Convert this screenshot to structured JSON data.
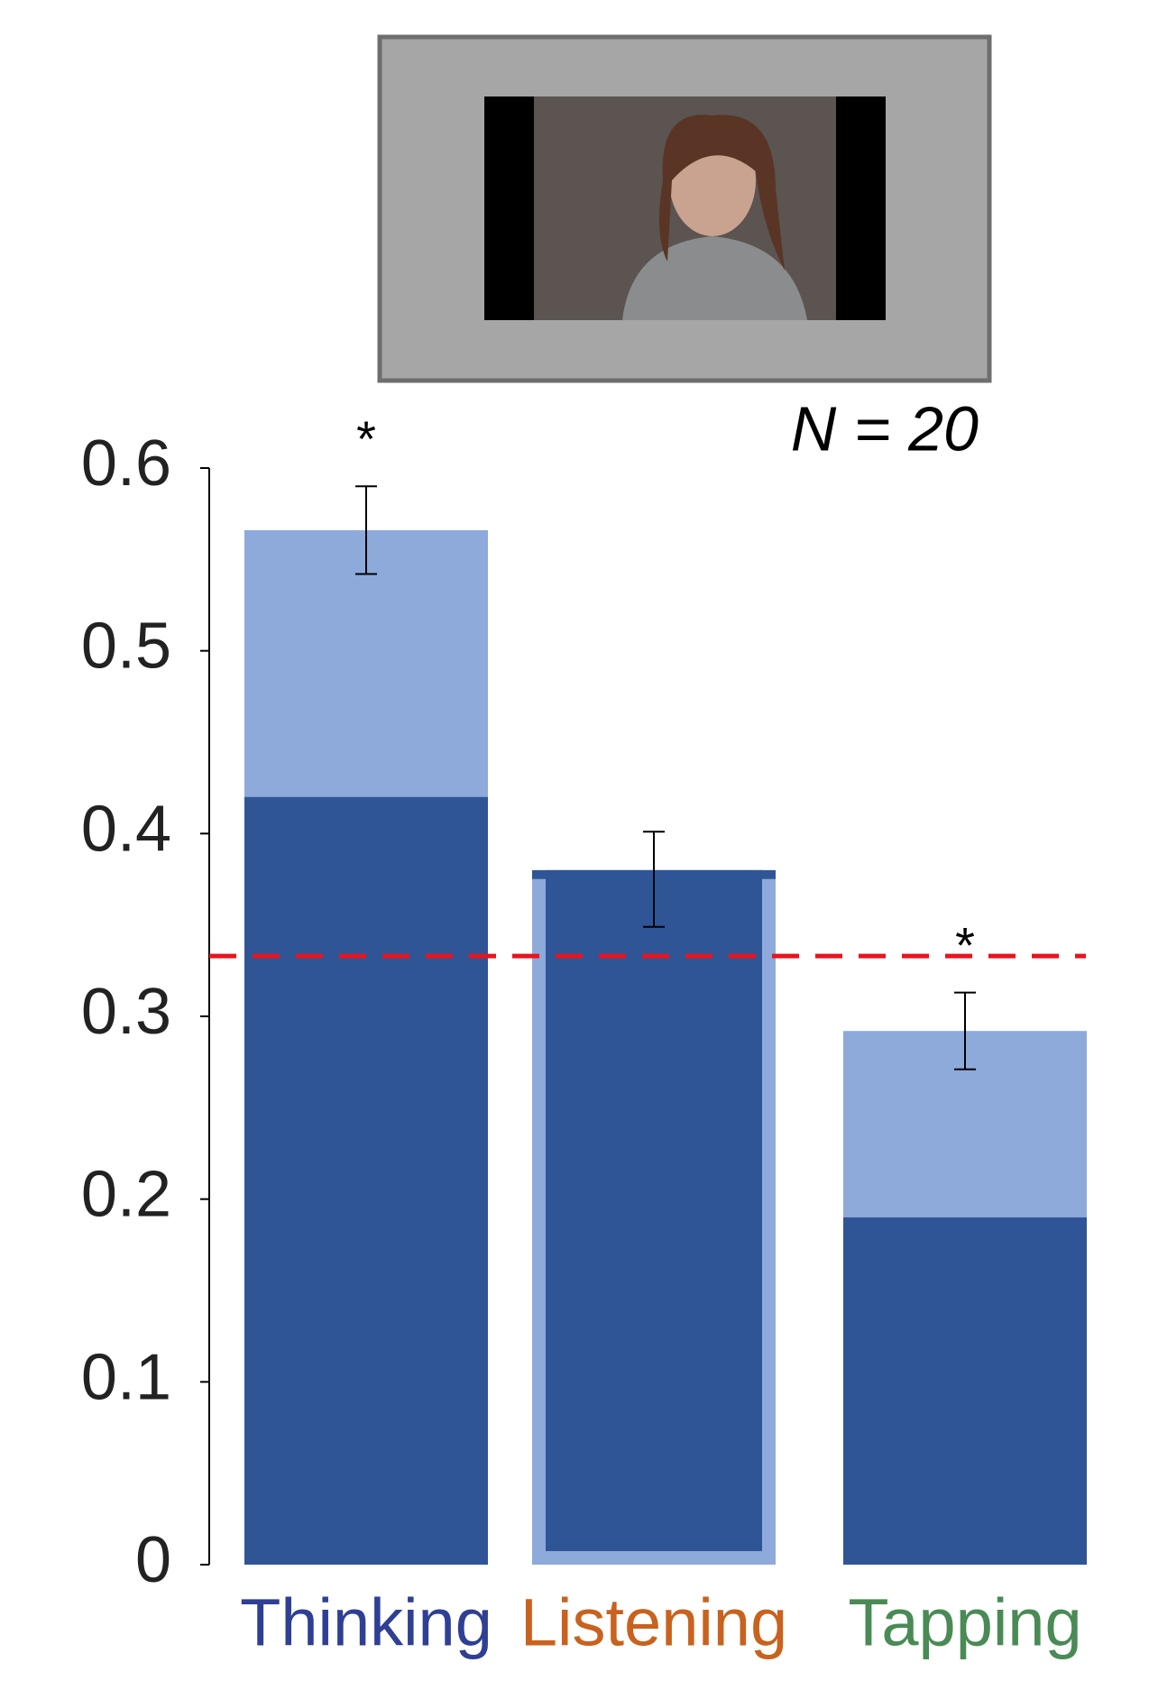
{
  "chart_data": {
    "type": "bar",
    "title": "N = 20",
    "categories": [
      "Thinking",
      "Listening",
      "Tapping"
    ],
    "category_colors": [
      "#2e3f94",
      "#c8621e",
      "#4a8a55"
    ],
    "values": [
      0.566,
      0.375,
      0.292
    ],
    "errors": [
      0.024,
      0.026,
      0.021
    ],
    "inner_values": [
      0.42,
      0.38,
      0.19
    ],
    "color": "#8eaadb",
    "inner_color": "#2f5597",
    "significance": [
      "*",
      null,
      "*"
    ],
    "reference_line": 0.333,
    "reference_color": "#e8141e",
    "ylim": [
      0,
      0.6
    ],
    "yticks": [
      0,
      0.1,
      0.2,
      0.3,
      0.4,
      0.5,
      0.6
    ],
    "grid": false
  }
}
